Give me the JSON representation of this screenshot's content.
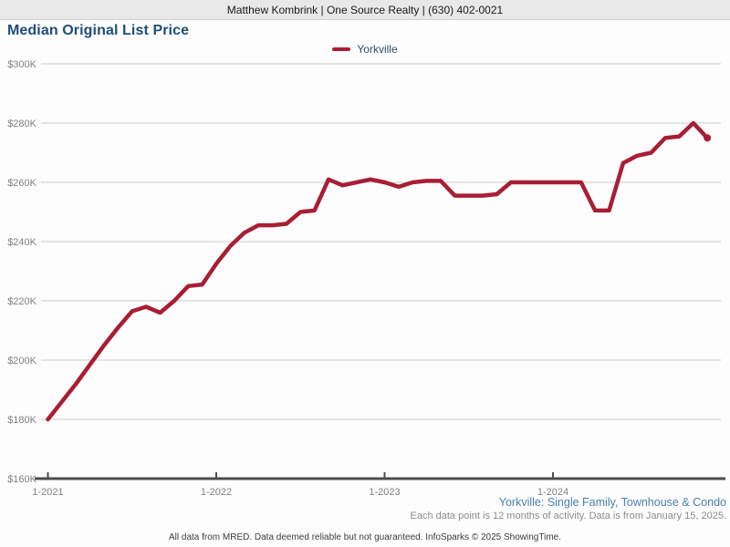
{
  "topbar": {
    "agent_info": "Matthew Kombrink | One Source Realty | (630) 402-0021"
  },
  "title": "Median Original List Price",
  "legend": {
    "series_label": "Yorkville"
  },
  "footnotes": {
    "segment": "Yorkville: Single Family, Townhouse & Condo",
    "data_note": "Each data point is 12 months of activity. Data is from January 15, 2025.",
    "disclaimer": "All data from MRED. Data deemed reliable but not guaranteed. InfoSparks © 2025 ShowingTime."
  },
  "colors": {
    "line": "#a81e35",
    "title_text": "#1f4e79",
    "axis": "#4d4d4d",
    "gridline": "#cbcbcb",
    "tick_label": "#808080",
    "segment_link": "#4a7eae"
  },
  "chart_data": {
    "type": "line",
    "title": "Median Original List Price",
    "units": "USD thousands",
    "ylim_thousands": [
      160,
      300
    ],
    "grid": "horizontal",
    "legend_position": "top-center",
    "ytick_labels": [
      "$300K",
      "$280K",
      "$260K",
      "$240K",
      "$220K",
      "$200K",
      "$180K",
      "$160K"
    ],
    "xtick_labels": [
      "1-2021",
      "1-2022",
      "1-2023",
      "1-2024"
    ],
    "x_labels": [
      "1-2021",
      "2-2021",
      "3-2021",
      "4-2021",
      "5-2021",
      "6-2021",
      "7-2021",
      "8-2021",
      "9-2021",
      "10-2021",
      "11-2021",
      "12-2021",
      "1-2022",
      "2-2022",
      "3-2022",
      "4-2022",
      "5-2022",
      "6-2022",
      "7-2022",
      "8-2022",
      "9-2022",
      "10-2022",
      "11-2022",
      "12-2022",
      "1-2023",
      "2-2023",
      "3-2023",
      "4-2023",
      "5-2023",
      "6-2023",
      "7-2023",
      "8-2023",
      "9-2023",
      "10-2023",
      "11-2023",
      "12-2023",
      "1-2024",
      "2-2024",
      "3-2024",
      "4-2024",
      "5-2024",
      "6-2024",
      "7-2024",
      "8-2024",
      "9-2024",
      "10-2024",
      "11-2024",
      "12-2024"
    ],
    "series": [
      {
        "name": "Yorkville",
        "color": "#a81e35",
        "values_usd_thousands": [
          180,
          186,
          192,
          198.5,
          205,
          211,
          216.5,
          218,
          216,
          220,
          225,
          225.5,
          232.5,
          238.5,
          243,
          245.5,
          245.5,
          246,
          250,
          250.5,
          261,
          259,
          260,
          261,
          260,
          258.5,
          260,
          260.5,
          260.5,
          255.5,
          255.5,
          255.5,
          256,
          260,
          260,
          260,
          260,
          260,
          260,
          250.5,
          250.5,
          266.5,
          269,
          270,
          275,
          275.5,
          280,
          275
        ]
      }
    ]
  }
}
